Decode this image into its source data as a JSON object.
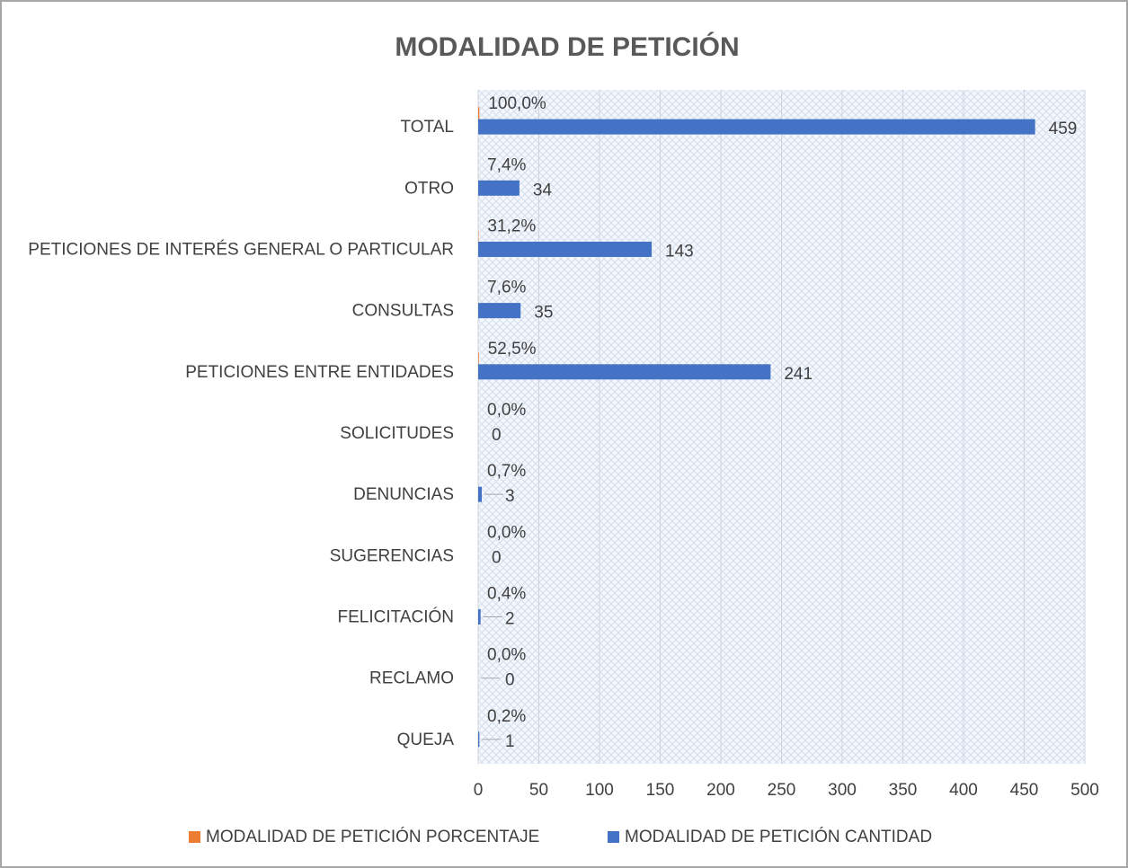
{
  "chart_data": {
    "type": "bar",
    "orientation": "horizontal",
    "title": "MODALIDAD DE PETICIÓN",
    "categories": [
      "TOTAL",
      "OTRO",
      "PETICIONES DE INTERÉS GENERAL O PARTICULAR",
      "CONSULTAS",
      "PETICIONES ENTRE ENTIDADES",
      "SOLICITUDES",
      "DENUNCIAS",
      "SUGERENCIAS",
      "FELICITACIÓN",
      "RECLAMO",
      "QUEJA"
    ],
    "series": [
      {
        "name": "MODALIDAD DE PETICIÓN PORCENTAJE",
        "color": "#ed7d31",
        "values": [
          1.0,
          0.074,
          0.312,
          0.076,
          0.525,
          0,
          0.007,
          0,
          0.004,
          0,
          0.002
        ],
        "value_labels": [
          "100,0%",
          "7,4%",
          "31,2%",
          "7,6%",
          "52,5%",
          "0,0%",
          "0,7%",
          "0,0%",
          "0,4%",
          "0,0%",
          "0,2%"
        ]
      },
      {
        "name": "MODALIDAD DE PETICIÓN CANTIDAD",
        "color": "#4472c4",
        "values": [
          459,
          34,
          143,
          35,
          241,
          0,
          3,
          0,
          2,
          0,
          1
        ]
      }
    ],
    "xlim": [
      0,
      500
    ],
    "xticks": [
      0,
      50,
      100,
      150,
      200,
      250,
      300,
      350,
      400,
      450,
      500
    ],
    "grid": true,
    "legend": "bottom"
  }
}
